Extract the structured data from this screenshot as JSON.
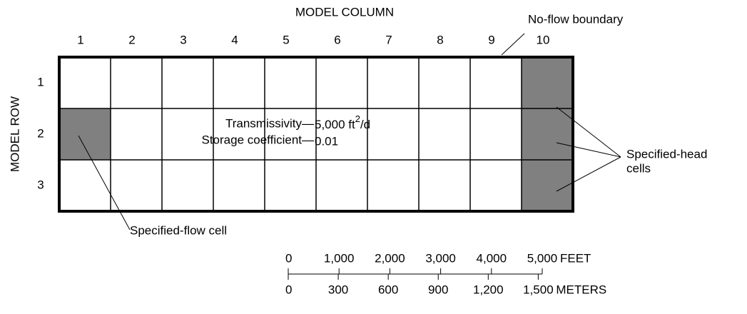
{
  "column_axis": {
    "title": "MODEL COLUMN",
    "labels": [
      "1",
      "2",
      "3",
      "4",
      "5",
      "6",
      "7",
      "8",
      "9",
      "10"
    ]
  },
  "row_axis": {
    "title": "MODEL ROW",
    "labels": [
      "1",
      "2",
      "3"
    ]
  },
  "properties": {
    "transmissivity": {
      "label": "Transmissivity—",
      "value": "5,000 ft",
      "superscript": "2",
      "suffix": "/d"
    },
    "storage": {
      "label": "Storage coefficient—",
      "value": "0.01"
    }
  },
  "annotations": {
    "no_flow": "No-flow boundary",
    "specified_head": [
      "Specified-head",
      "cells"
    ],
    "specified_flow": "Specified-flow cell"
  },
  "scale": {
    "feet": {
      "unit": "FEET",
      "ticks": [
        0,
        {
          "value": 1000,
          "label": "1,000"
        },
        {
          "value": 2000,
          "label": "2,000"
        },
        {
          "value": 3000,
          "label": "3,000"
        },
        {
          "value": 4000,
          "label": "4,000"
        },
        {
          "value": 5000,
          "label": "5,000"
        }
      ]
    },
    "meters": {
      "unit": "METERS",
      "ticks": [
        0,
        300,
        600,
        900,
        {
          "value": 1200,
          "label": "1,200"
        },
        {
          "value": 1500,
          "label": "1,500"
        }
      ]
    }
  }
}
